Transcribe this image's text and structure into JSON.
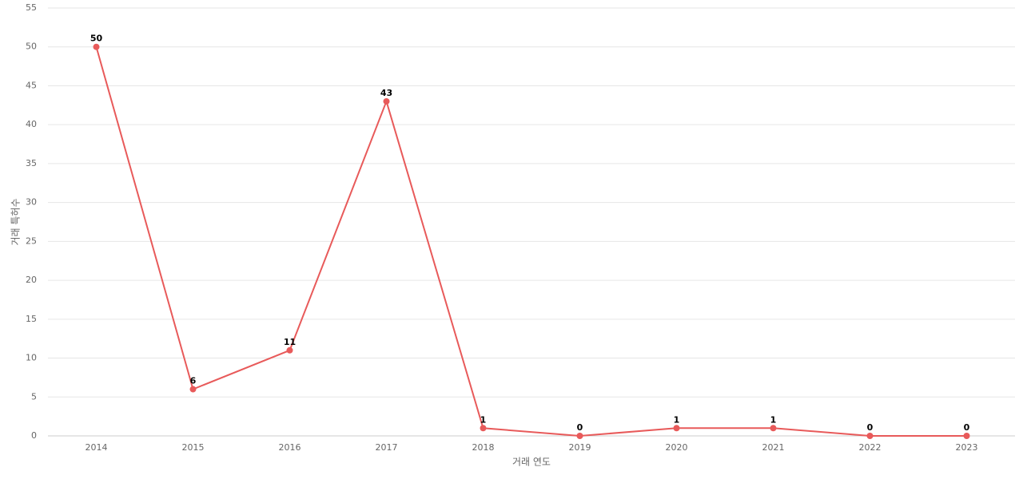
{
  "chart_data": {
    "type": "line",
    "x_label": "거래 연도",
    "y_label": "거래 특허수",
    "categories": [
      "2014",
      "2015",
      "2016",
      "2017",
      "2018",
      "2019",
      "2020",
      "2021",
      "2022",
      "2023"
    ],
    "values": [
      50,
      6,
      11,
      43,
      1,
      0,
      1,
      1,
      0,
      0
    ],
    "color": "#e85a5a",
    "ylim": [
      0,
      55
    ],
    "yticks": [
      0,
      5,
      10,
      15,
      20,
      25,
      30,
      35,
      40,
      45,
      50,
      55
    ],
    "grid": true
  }
}
